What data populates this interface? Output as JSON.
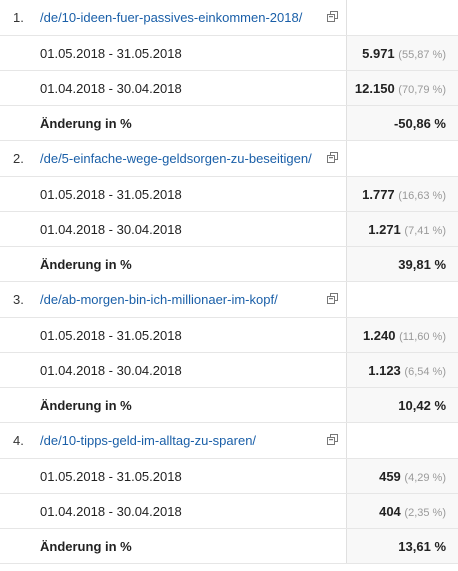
{
  "rows": [
    {
      "index": "1.",
      "page": "/de/10-ideen-fuer-passives-einkommen-2018/",
      "current_period": "01.05.2018 - 31.05.2018",
      "current_value": "5.971",
      "current_pct": "(55,87 %)",
      "previous_period": "01.04.2018 - 30.04.2018",
      "previous_value": "12.150",
      "previous_pct": "(70,79 %)",
      "change_label": "Änderung in %",
      "change_value": "-50,86 %"
    },
    {
      "index": "2.",
      "page": "/de/5-einfache-wege-geldsorgen-zu-beseitigen/",
      "current_period": "01.05.2018 - 31.05.2018",
      "current_value": "1.777",
      "current_pct": "(16,63 %)",
      "previous_period": "01.04.2018 - 30.04.2018",
      "previous_value": "1.271",
      "previous_pct": "(7,41 %)",
      "change_label": "Änderung in %",
      "change_value": "39,81 %"
    },
    {
      "index": "3.",
      "page": "/de/ab-morgen-bin-ich-millionaer-im-kopf/",
      "current_period": "01.05.2018 - 31.05.2018",
      "current_value": "1.240",
      "current_pct": "(11,60 %)",
      "previous_period": "01.04.2018 - 30.04.2018",
      "previous_value": "1.123",
      "previous_pct": "(6,54 %)",
      "change_label": "Änderung in %",
      "change_value": "10,42 %"
    },
    {
      "index": "4.",
      "page": "/de/10-tipps-geld-im-alltag-zu-sparen/",
      "current_period": "01.05.2018 - 31.05.2018",
      "current_value": "459",
      "current_pct": "(4,29 %)",
      "previous_period": "01.04.2018 - 30.04.2018",
      "previous_value": "404",
      "previous_pct": "(2,35 %)",
      "change_label": "Änderung in %",
      "change_value": "13,61 %"
    }
  ],
  "icons": {
    "open_page": "external-link-icon"
  },
  "colors": {
    "link": "#1a5fa8",
    "percent_muted": "#9a9a9a",
    "value_cell_bg": "#f8f8f8",
    "row_border": "#e6e6e6"
  }
}
